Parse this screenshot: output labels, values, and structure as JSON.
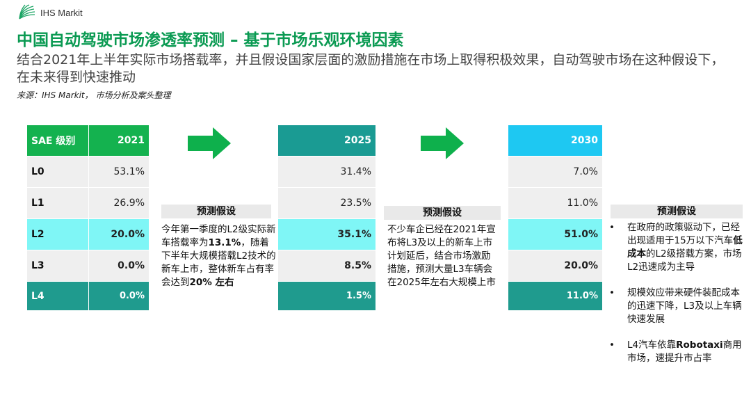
{
  "header": {
    "logo_text": "IHS Markit",
    "title": "中国自动驾驶市场渗透率预测 – 基于市场乐观环境因素",
    "subtitle": "结合2021年上半年实际市场搭载率，并且假设国家层面的激励措施在市场上取得积极效果，自动驾驶市场在这种假设下，在未来得到快速推动",
    "source": "来源：IHS Markit， 市场分析及案头整理"
  },
  "colors": {
    "title_green": "#0a9a52",
    "header_2021": "#14b24f",
    "header_2025": "#1a9b93",
    "header_2030": "#1ec8f2",
    "row_gray": "#efefef",
    "row_cyan": "#7ff6f6",
    "row_teal": "#1f9b8e",
    "arrow_green": "#0eb04c"
  },
  "table": {
    "level_header": "SAE 级别",
    "levels": [
      "L0",
      "L1",
      "L2",
      "L3",
      "L4"
    ],
    "years": [
      {
        "year": "2021",
        "values": [
          "53.1%",
          "26.9%",
          "20.0%",
          "0.0%",
          "0.0%"
        ]
      },
      {
        "year": "2025",
        "values": [
          "31.4%",
          "23.5%",
          "35.1%",
          "8.5%",
          "1.5%"
        ]
      },
      {
        "year": "2030",
        "values": [
          "7.0%",
          "11.0%",
          "51.0%",
          "20.0%",
          "11.0%"
        ]
      }
    ]
  },
  "assumptions": {
    "box1": {
      "title": "预测假设",
      "t1": "今年第一季度的L2级实际新车搭载率为",
      "b1": "13.1%",
      "t2": "，随着下半年大规模搭载L2技术的新车上市，整体新车占有率会达到",
      "b2": "20% 左右"
    },
    "box2": {
      "title": "预测假设",
      "text": "不少车企已经在2021年宣布将L3及以上的新车上市计划延后，结合市场激励措施，预测大量L3车辆会在2025年左右大规模上市"
    },
    "box3": {
      "title": "预测假设",
      "bullet1_a": "在政府的政策驱动下，已经出现适用于15万以下汽车",
      "bullet1_b": "低成本",
      "bullet1_c": "的L2级搭载方案，市场L2迅速成为主导",
      "bullet2": "规模效应带来硬件装配成本的迅速下降，L3及以上车辆快速发展",
      "bullet3_a": "L4汽车依靠",
      "bullet3_b": "Robotaxi",
      "bullet3_c": "商用市场，速提升市占率"
    }
  }
}
